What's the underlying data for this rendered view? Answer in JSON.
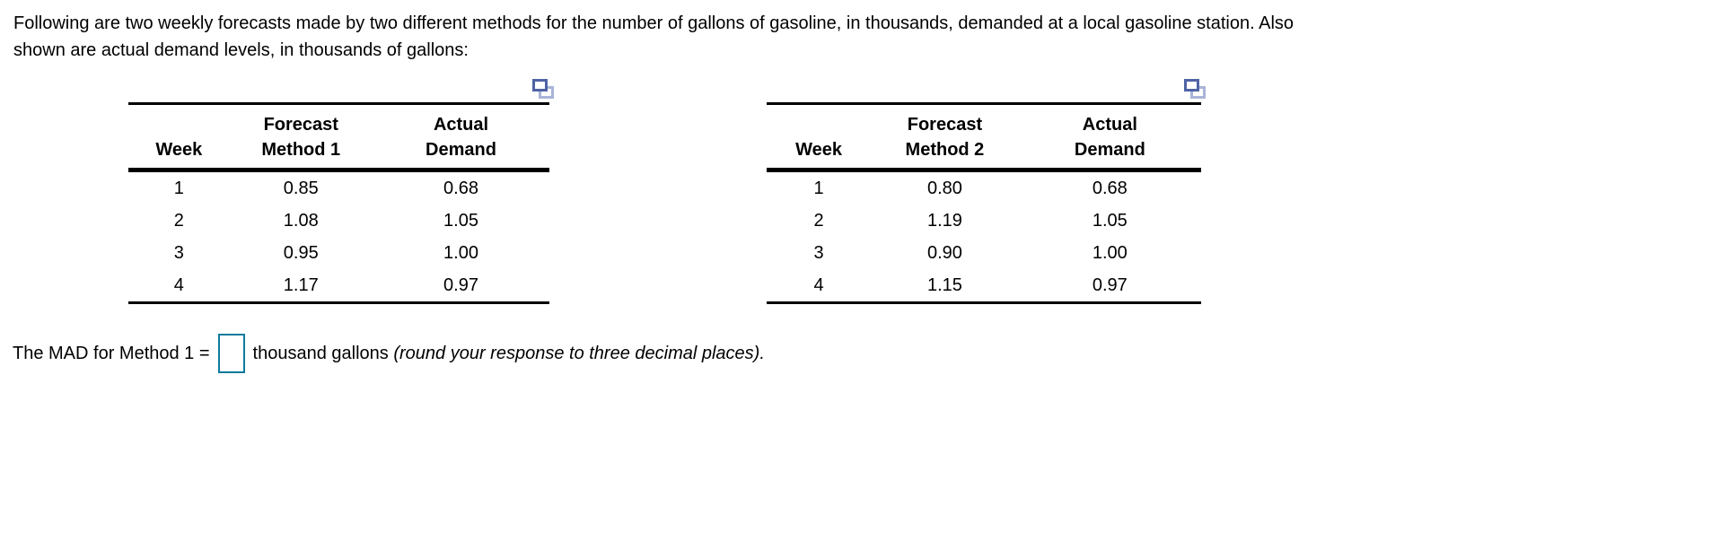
{
  "intro": {
    "line1": "Following are two weekly forecasts made by two different methods for the number of gallons of gasoline, in thousands, demanded at a local gasoline station. Also",
    "line2": "shown are actual demand levels, in thousands of gallons:"
  },
  "tables": [
    {
      "popout_icon": "pop-out-table-icon",
      "headers": {
        "week": "Week",
        "forecast_line1": "Forecast",
        "forecast_line2": "Method 1",
        "actual_line1": "Actual",
        "actual_line2": "Demand"
      },
      "rows": [
        [
          "1",
          "0.85",
          "0.68"
        ],
        [
          "2",
          "1.08",
          "1.05"
        ],
        [
          "3",
          "0.95",
          "1.00"
        ],
        [
          "4",
          "1.17",
          "0.97"
        ]
      ]
    },
    {
      "popout_icon": "pop-out-table-icon",
      "headers": {
        "week": "Week",
        "forecast_line1": "Forecast",
        "forecast_line2": "Method 2",
        "actual_line1": "Actual",
        "actual_line2": "Demand"
      },
      "rows": [
        [
          "1",
          "0.80",
          "0.68"
        ],
        [
          "2",
          "1.19",
          "1.05"
        ],
        [
          "3",
          "0.90",
          "1.00"
        ],
        [
          "4",
          "1.15",
          "0.97"
        ]
      ]
    }
  ],
  "question": {
    "prefix": "The MAD for Method 1 =",
    "answer_value": "",
    "unit_text": "thousand gallons ",
    "note_italic": "(round your response to three decimal places)."
  },
  "colors": {
    "background": "#ffffff",
    "text": "#000000",
    "answer_box_border": "#0f7a9d",
    "popout_dark": "#4f63a5",
    "popout_light": "#a9b4d8"
  }
}
